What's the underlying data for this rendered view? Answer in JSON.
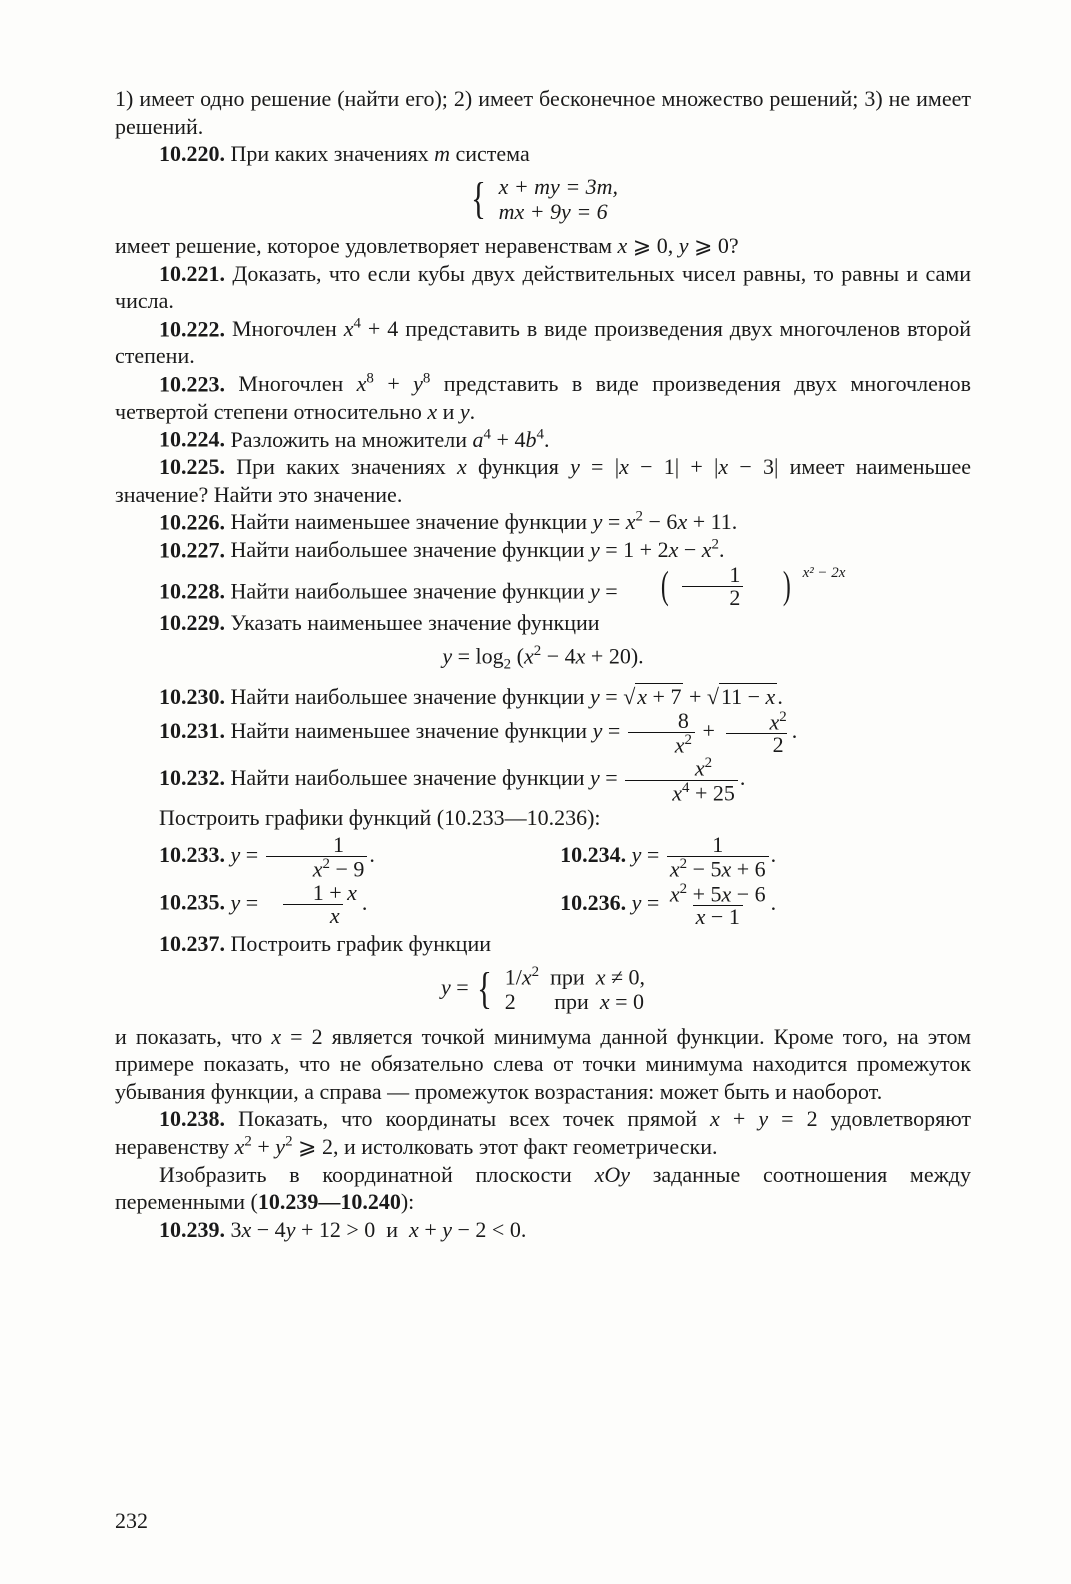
{
  "intro1": "1) имеет одно решение (найти его); 2) имеет бесконечное множество решений; 3) не имеет решений.",
  "p10_220_num": "10.220.",
  "p10_220": "При каких значениях m система",
  "sys220_l1": "x + my = 3m,",
  "sys220_l2": "mx + 9y = 6",
  "after220": "имеет решение, которое удовлетворяет неравенствам x ⩾ 0, y ⩾ 0?",
  "p10_221_num": "10.221.",
  "p10_221": "Доказать, что если кубы двух действительных чисел равны, то равны и сами числа.",
  "p10_222_num": "10.222.",
  "p10_222": "Многочлен x⁴ + 4 представить в виде произведения двух многочленов второй степени.",
  "p10_223_num": "10.223.",
  "p10_223": "Многочлен x⁸ + y⁸ представить в виде произведения двух многочленов четвертой степени относительно x и y.",
  "p10_224_num": "10.224.",
  "p10_224": "Разложить на множители a⁴ + 4b⁴.",
  "p10_225_num": "10.225.",
  "p10_225": "При каких значениях x функция y = |x − 1| + |x − 3| имеет наименьшее значение? Найти это значение.",
  "p10_226_num": "10.226.",
  "p10_226": "Найти наименьшее значение функции y = x² − 6x + 11.",
  "p10_227_num": "10.227.",
  "p10_227": "Найти наибольшее значение функции y = 1 + 2x − x².",
  "p10_228_num": "10.228.",
  "p10_228": "Найти наибольшее значение функции y =",
  "p228_exp": "x² − 2x",
  "p10_229_num": "10.229.",
  "p10_229": "Указать наименьшее значение функции",
  "p229_formula": "y = log₂ (x² − 4x + 20).",
  "p10_230_num": "10.230.",
  "p10_230": "Найти наибольшее значение функции y = ",
  "p230_sqrt1": "x + 7",
  "p230_sqrt2": "11 − x",
  "p10_231_num": "10.231.",
  "p10_231": "Найти наименьшее значение функции y =",
  "p10_232_num": "10.232.",
  "p10_232": "Найти наибольшее значение функции y =",
  "plot_header": "Построить графики функций (10.233—10.236):",
  "p10_233_num": "10.233.",
  "p10_234_num": "10.234.",
  "p10_235_num": "10.235.",
  "p10_236_num": "10.236.",
  "p10_237_num": "10.237.",
  "p10_237": "Построить график функции",
  "p237_l1": "1/x²  при  x ≠ 0,",
  "p237_l2": "2      при  x = 0",
  "after237": "и показать, что x = 2 является точкой минимума данной функции. Кроме того, на этом примере показать, что не обязательно слева от точки минимума находится промежуток убывания функции, а справа — промежуток возрастания: может быть и наоборот.",
  "p10_238_num": "10.238.",
  "p10_238": "Показать, что координаты всех точек прямой x + y = 2 удовлетворяют неравенству x² + y² ⩾ 2, и истолковать этот факт геометрически.",
  "coord_header": "Изобразить в координатной плоскости xOy заданные соотношения между переменными (10.239—10.240):",
  "p10_239_num": "10.239.",
  "p10_239": "3x − 4y + 12 > 0  и  x + y − 2 < 0.",
  "pagenum": "232"
}
